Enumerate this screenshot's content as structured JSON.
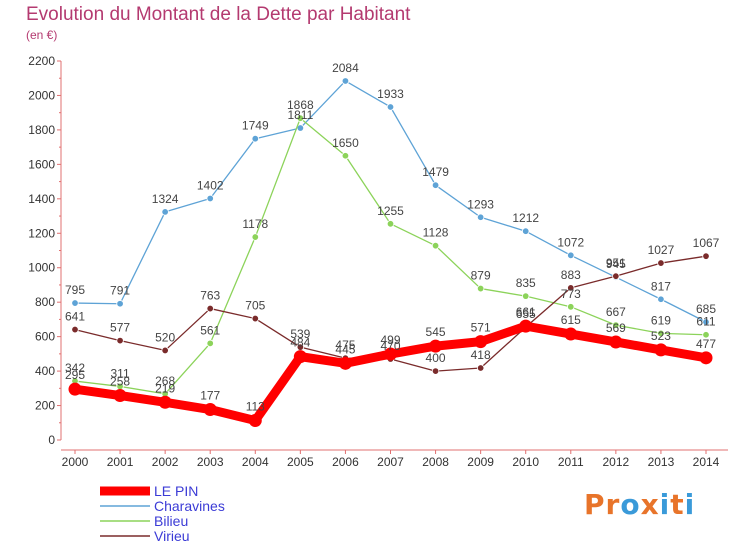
{
  "title": "Evolution du Montant de la Dette par Habitant",
  "subtitle": "(en €)",
  "logo": {
    "text": "Proxiti",
    "colors": [
      "#e8742a",
      "#e8742a",
      "#3a9ad9",
      "#e8742a",
      "#3a9ad9",
      "#e8742a",
      "#3a9ad9"
    ]
  },
  "chart_data": {
    "type": "line",
    "title": "Evolution du Montant de la Dette par Habitant",
    "subtitle": "(en €)",
    "x": [
      2000,
      2001,
      2002,
      2003,
      2004,
      2005,
      2006,
      2007,
      2008,
      2009,
      2010,
      2011,
      2012,
      2013,
      2014
    ],
    "ylim": [
      0,
      2200
    ],
    "yticks": [
      0,
      200,
      400,
      600,
      800,
      1000,
      1200,
      1400,
      1600,
      1800,
      2000,
      2200
    ],
    "grid": false,
    "legend": "bottom-left",
    "series": [
      {
        "name": "LE PIN",
        "color": "#ff0000",
        "bold": true,
        "values": [
          295,
          258,
          219,
          177,
          113,
          484,
          445,
          499,
          545,
          571,
          661,
          615,
          569,
          523,
          477
        ]
      },
      {
        "name": "Charavines",
        "color": "#5ea3d6",
        "values": [
          795,
          791,
          1324,
          1402,
          1749,
          1811,
          2084,
          1933,
          1479,
          1293,
          1212,
          1072,
          945,
          817,
          685
        ]
      },
      {
        "name": "Bilieu",
        "color": "#8cd35a",
        "values": [
          342,
          311,
          268,
          561,
          1178,
          1868,
          1650,
          1255,
          1128,
          879,
          835,
          773,
          667,
          619,
          611
        ]
      },
      {
        "name": "Virieu",
        "color": "#7a2b2b",
        "values": [
          641,
          577,
          520,
          763,
          705,
          539,
          475,
          470,
          400,
          418,
          655,
          883,
          951,
          1027,
          1067
        ]
      }
    ]
  }
}
